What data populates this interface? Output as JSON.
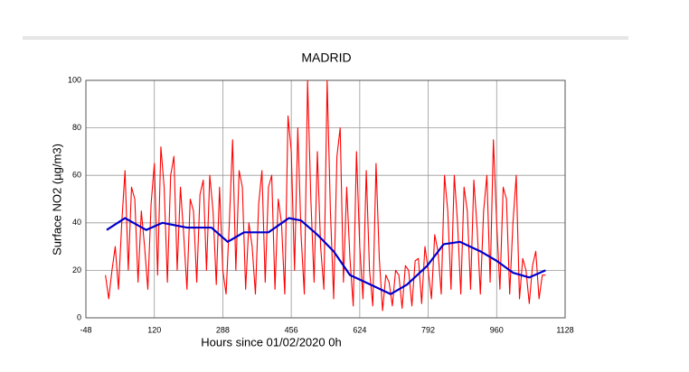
{
  "chart_data": {
    "type": "line",
    "title": "MADRID",
    "xlabel": "Hours since 01/02/2020 0h",
    "ylabel": "Surface NO2 (µg/m3)",
    "xlim": [
      -48,
      1128
    ],
    "xticks": [
      -48,
      120,
      288,
      456,
      624,
      792,
      960,
      1128
    ],
    "ylim": [
      0,
      100
    ],
    "yticks": [
      0,
      20,
      40,
      60,
      80,
      100
    ],
    "grid": true,
    "series": [
      {
        "color": "#ff0000",
        "x": [
          0,
          8,
          16,
          24,
          32,
          40,
          48,
          56,
          64,
          72,
          80,
          88,
          96,
          104,
          112,
          120,
          128,
          136,
          144,
          152,
          160,
          168,
          176,
          184,
          192,
          200,
          208,
          216,
          224,
          232,
          240,
          248,
          256,
          264,
          272,
          280,
          288,
          296,
          304,
          312,
          320,
          328,
          336,
          344,
          352,
          360,
          368,
          376,
          384,
          392,
          400,
          408,
          416,
          424,
          432,
          440,
          448,
          456,
          464,
          472,
          480,
          488,
          496,
          504,
          512,
          520,
          528,
          536,
          544,
          552,
          560,
          568,
          576,
          584,
          592,
          600,
          608,
          616,
          624,
          632,
          640,
          648,
          656,
          664,
          672,
          680,
          688,
          696,
          704,
          712,
          720,
          728,
          736,
          744,
          752,
          760,
          768,
          776,
          784,
          792,
          800,
          808,
          816,
          824,
          832,
          840,
          848,
          856,
          864,
          872,
          880,
          888,
          896,
          904,
          912,
          920,
          928,
          936,
          944,
          952,
          960,
          968,
          976,
          984,
          992,
          1000,
          1008,
          1016,
          1024,
          1032,
          1040,
          1048,
          1056,
          1064,
          1072,
          1080
        ],
        "values": [
          18,
          8,
          20,
          30,
          12,
          40,
          62,
          20,
          55,
          50,
          15,
          45,
          30,
          12,
          48,
          65,
          18,
          72,
          55,
          15,
          60,
          68,
          20,
          55,
          35,
          12,
          50,
          45,
          15,
          52,
          58,
          20,
          60,
          45,
          14,
          55,
          20,
          10,
          40,
          75,
          20,
          62,
          55,
          12,
          40,
          30,
          10,
          48,
          62,
          15,
          55,
          60,
          12,
          50,
          40,
          10,
          85,
          70,
          20,
          80,
          35,
          10,
          100,
          50,
          15,
          70,
          30,
          12,
          100,
          45,
          8,
          68,
          80,
          15,
          55,
          25,
          5,
          70,
          30,
          8,
          62,
          20,
          5,
          65,
          25,
          3,
          18,
          15,
          5,
          20,
          18,
          4,
          22,
          20,
          5,
          24,
          25,
          6,
          30,
          20,
          8,
          35,
          28,
          10,
          60,
          45,
          12,
          60,
          40,
          10,
          55,
          45,
          12,
          58,
          38,
          10,
          45,
          60,
          15,
          75,
          40,
          12,
          55,
          50,
          10,
          40,
          60,
          8,
          25,
          20,
          6,
          22,
          28,
          8,
          18,
          18
        ]
      },
      {
        "color": "#0000cc",
        "x": [
          3,
          48,
          100,
          140,
          200,
          260,
          300,
          340,
          400,
          450,
          480,
          520,
          560,
          600,
          650,
          700,
          740,
          790,
          830,
          870,
          920,
          960,
          1000,
          1040,
          1080
        ],
        "values": [
          37,
          42,
          37,
          40,
          38,
          38,
          32,
          36,
          36,
          42,
          41,
          35,
          28,
          18,
          14,
          10,
          14,
          22,
          31,
          32,
          28,
          24,
          19,
          17,
          20
        ]
      }
    ]
  }
}
